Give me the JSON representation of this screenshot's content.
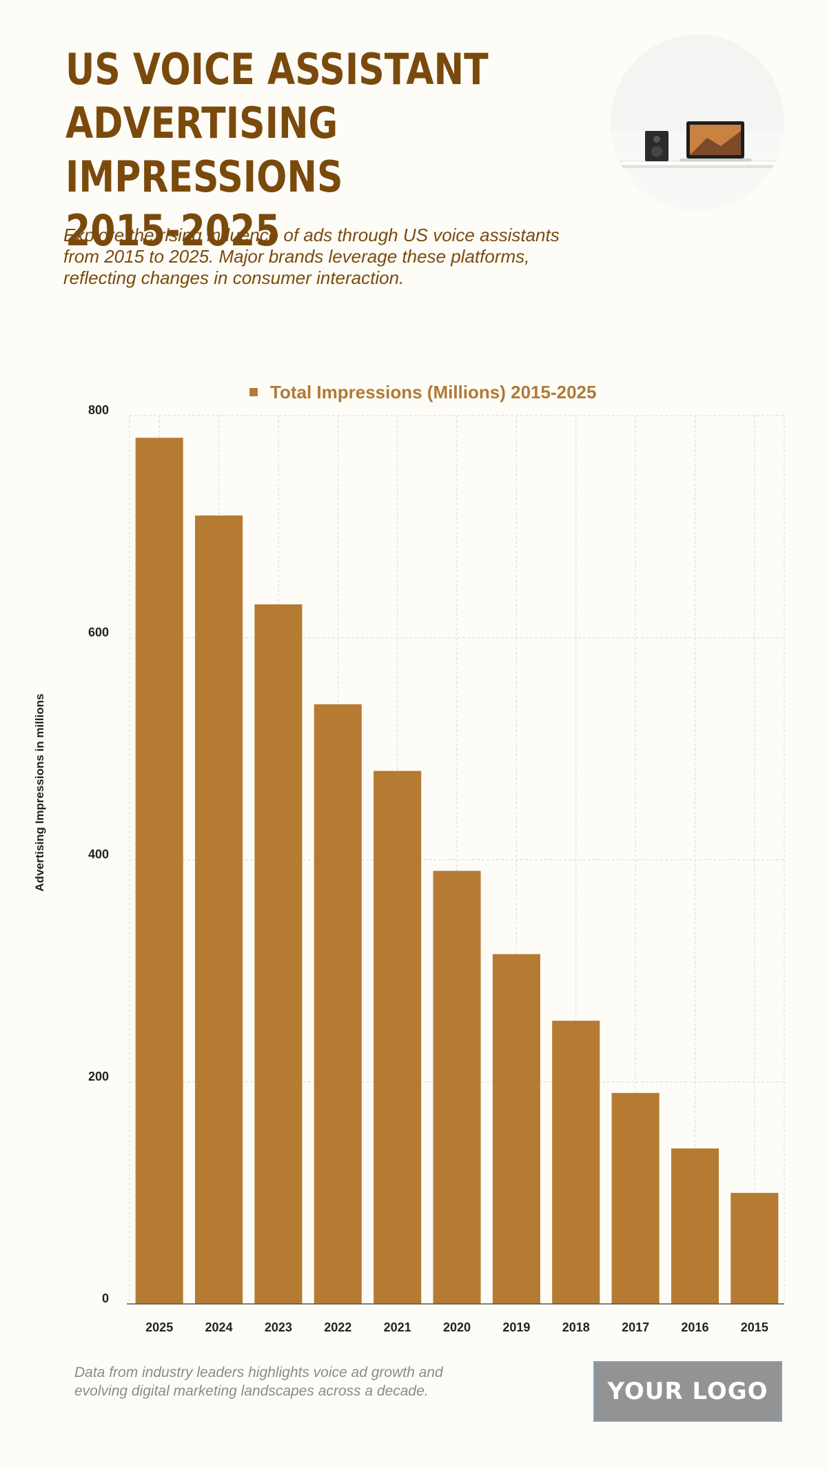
{
  "header": {
    "title_lines": [
      "US Voice Assistant",
      "Advertising Impressions",
      "2015-2025"
    ],
    "subtitle_lines": [
      "Explore the rising influence of ads through US voice assistants",
      "from 2015 to 2025. Major brands leverage these platforms,",
      "reflecting changes in consumer interaction."
    ]
  },
  "footer": {
    "note_lines": [
      "Data from industry leaders highlights voice ad growth and",
      "evolving digital marketing landscapes across a decade."
    ],
    "logo_text": "YOUR LOGO"
  },
  "colors": {
    "bar": "#b57b33",
    "title": "#7a4a0c",
    "legend_text": "#b07a35",
    "grid": "#d9d9d4"
  },
  "chart_data": {
    "type": "bar",
    "categories": [
      "2025",
      "2024",
      "2023",
      "2022",
      "2021",
      "2020",
      "2019",
      "2018",
      "2017",
      "2016",
      "2015"
    ],
    "series": [
      {
        "name": "Total Impressions (Millions) 2015-2025",
        "values": [
          780,
          710,
          630,
          540,
          480,
          390,
          315,
          255,
          190,
          140,
          100
        ]
      }
    ],
    "ylabel": "Advertising Impressions in millions",
    "xlabel": "",
    "ylim": [
      0,
      800
    ],
    "yticks": [
      0,
      200,
      400,
      600,
      800
    ],
    "legend_position": "top-center",
    "grid": true
  }
}
